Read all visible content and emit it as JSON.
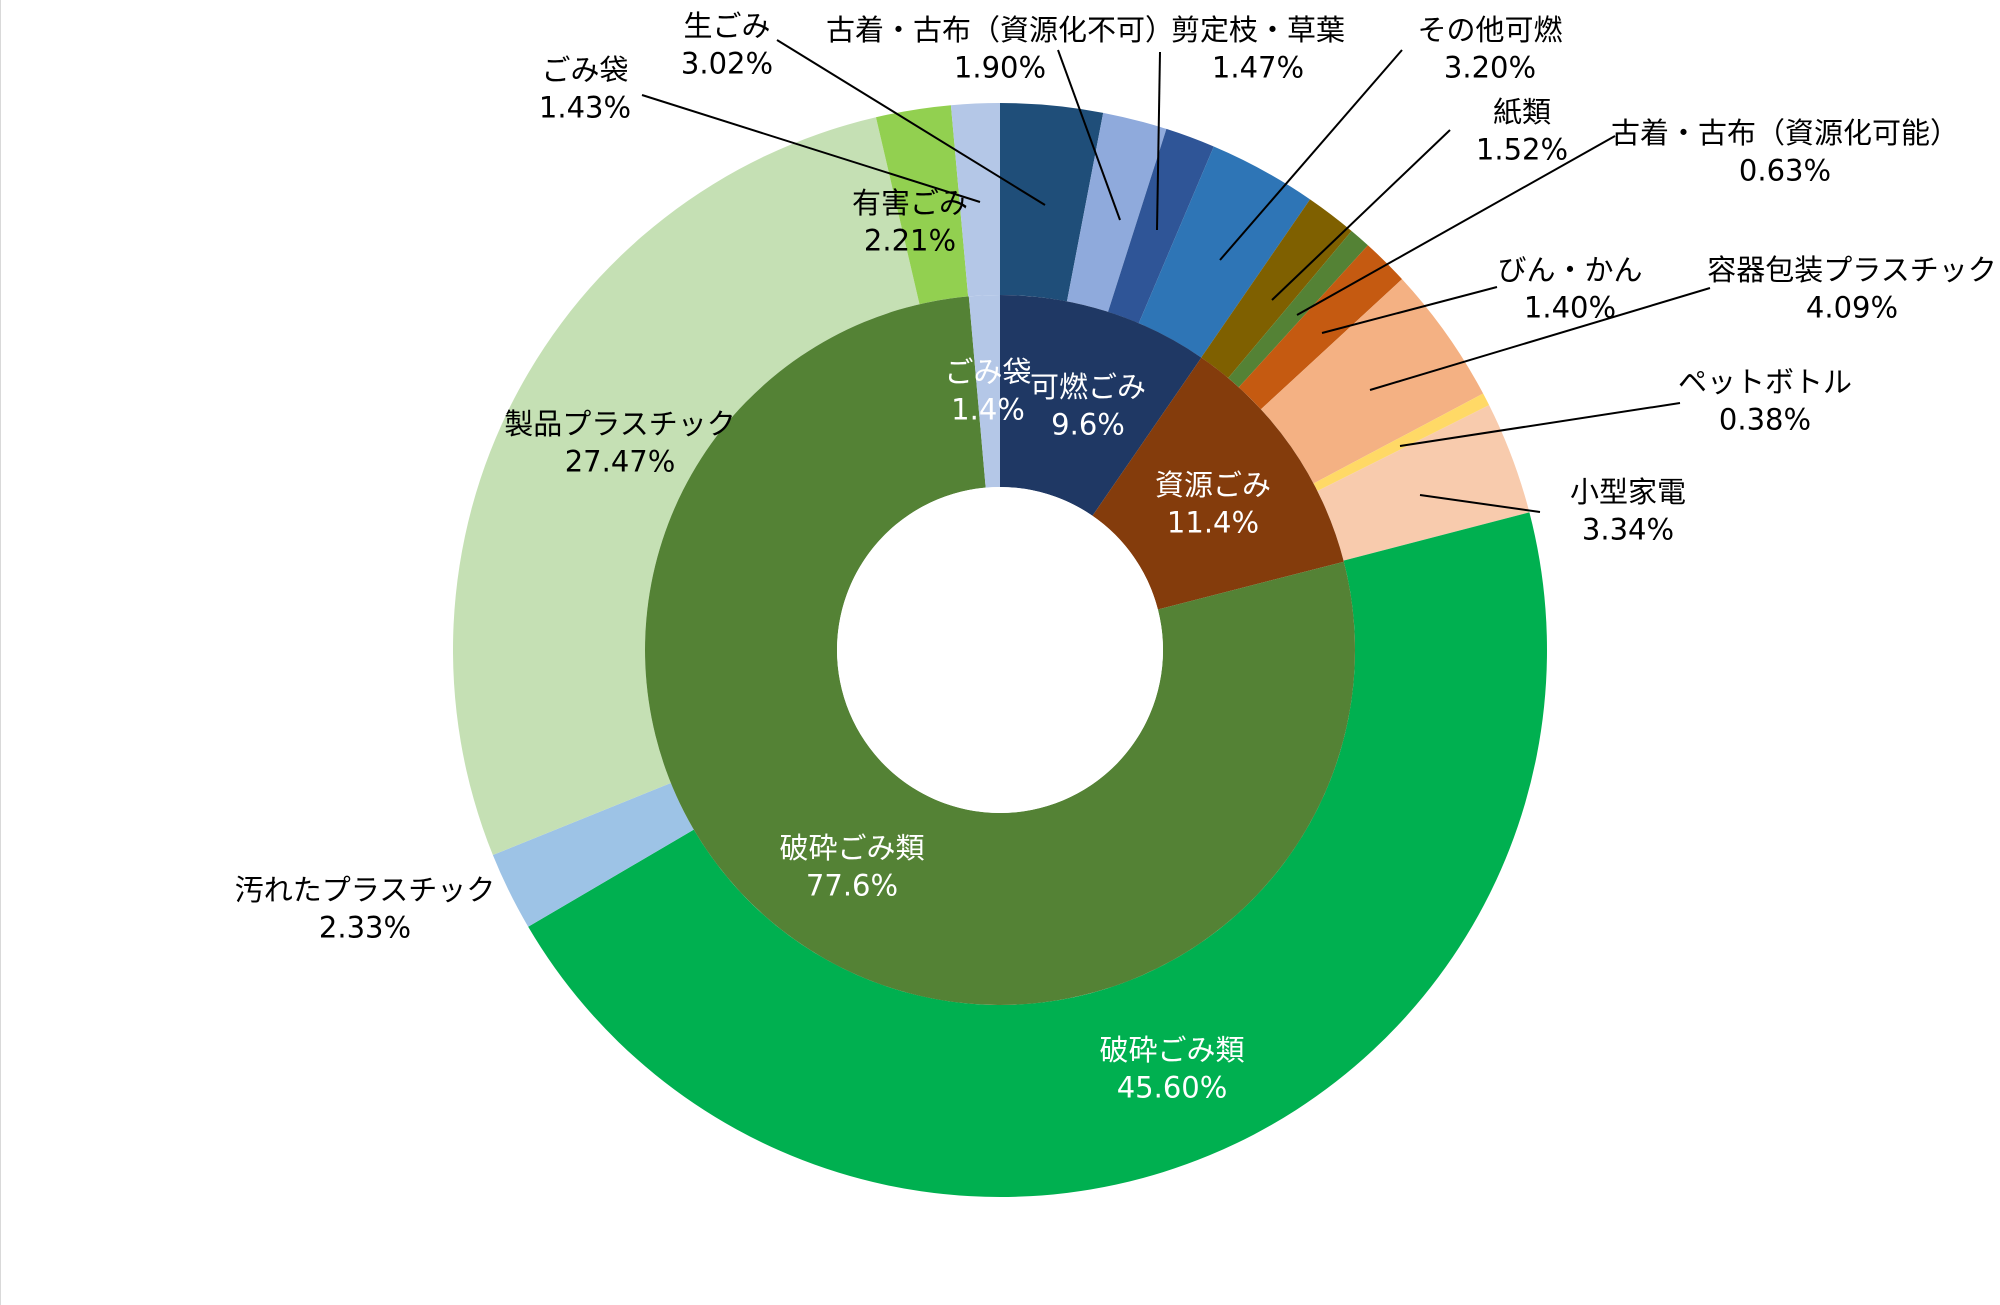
{
  "chart_data": {
    "type": "pie",
    "subtype": "sunburst",
    "title": "",
    "legend": "none",
    "label_position": "outside with leader lines (outer ring), inside (inner ring)",
    "inner_ring": [
      {
        "name": "可燃ごみ",
        "value": 9.6,
        "label": "9.6%",
        "color": "#1f3864"
      },
      {
        "name": "資源ごみ",
        "value": 11.4,
        "label": "11.4%",
        "color": "#843c0c"
      },
      {
        "name": "破砕ごみ類",
        "value": 77.6,
        "label": "77.6%",
        "color": "#548235"
      },
      {
        "name": "ごみ袋",
        "value": 1.4,
        "label": "1.4%",
        "color": "#b4c7e7"
      }
    ],
    "outer_ring": [
      {
        "name": "生ごみ",
        "value": 3.02,
        "label": "3.02%",
        "color": "#1f4e79"
      },
      {
        "name": "古着・古布（資源化不可）",
        "value": 1.9,
        "label": "1.90%",
        "color": "#8faadc"
      },
      {
        "name": "剪定枝・草葉",
        "value": 1.47,
        "label": "1.47%",
        "color": "#2f5597"
      },
      {
        "name": "その他可燃",
        "value": 3.2,
        "label": "3.20%",
        "color": "#2e75b6"
      },
      {
        "name": "紙類",
        "value": 1.52,
        "label": "1.52%",
        "color": "#7f6000"
      },
      {
        "name": "古着・古布（資源化可能）",
        "value": 0.63,
        "label": "0.63%",
        "color": "#548235"
      },
      {
        "name": "びん・かん",
        "value": 1.4,
        "label": "1.40%",
        "color": "#c55a11"
      },
      {
        "name": "容器包装プラスチック",
        "value": 4.09,
        "label": "4.09%",
        "color": "#f4b183"
      },
      {
        "name": "ペットボトル",
        "value": 0.38,
        "label": "0.38%",
        "color": "#ffd966"
      },
      {
        "name": "小型家電",
        "value": 3.34,
        "label": "3.34%",
        "color": "#f8cbad"
      },
      {
        "name": "破砕ごみ類",
        "value": 45.6,
        "label": "45.60%",
        "color": "#00b050"
      },
      {
        "name": "汚れたプラスチック",
        "value": 2.33,
        "label": "2.33%",
        "color": "#9dc3e6"
      },
      {
        "name": "製品プラスチック",
        "value": 27.47,
        "label": "27.47%",
        "color": "#c5e0b4"
      },
      {
        "name": "有害ごみ",
        "value": 2.21,
        "label": "2.21%",
        "color": "#92d050"
      },
      {
        "name": "ごみ袋",
        "value": 1.43,
        "label": "1.43%",
        "color": "#b4c7e7"
      }
    ]
  }
}
